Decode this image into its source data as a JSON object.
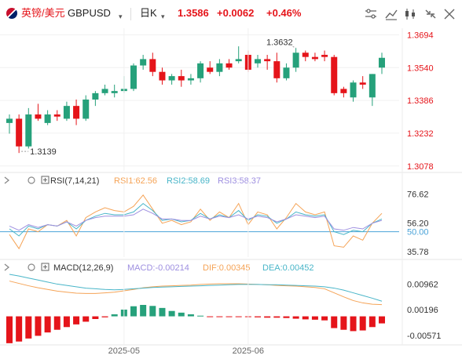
{
  "header": {
    "pair_cn": "英镑/美元",
    "symbol": "GBPUSD",
    "interval": "日K",
    "price": "1.3586",
    "change": "+0.0062",
    "change_pct": "+0.46%"
  },
  "colors": {
    "up": "#26a17b",
    "down": "#e5141a",
    "accent": "#e5141a",
    "rsi1": "#f5a356",
    "rsi2": "#48b5c8",
    "rsi3": "#9e8fe0",
    "ref_line": "#4aa3d8"
  },
  "toolbar_icons": [
    "settings-icon",
    "chart-type-icon",
    "indicator-icon",
    "collapse-icon",
    "close-icon"
  ],
  "chart_data": [
    {
      "type": "candlestick",
      "title": "GBPUSD 日K",
      "y_ticks": [
        "1.3694",
        "1.3540",
        "1.3386",
        "1.3232",
        "1.3078"
      ],
      "ylim": [
        1.3055,
        1.3725
      ],
      "x_ticks": [
        {
          "label": "2025-05",
          "index": 12
        },
        {
          "label": "2025-06",
          "index": 25
        }
      ],
      "annotations": [
        {
          "label": "1.3632",
          "index": 30,
          "value": 1.3632
        },
        {
          "label": "1.3139",
          "index": 1,
          "value": 1.3139
        }
      ],
      "candles": [
        {
          "o": 1.328,
          "h": 1.332,
          "l": 1.323,
          "c": 1.33
        },
        {
          "o": 1.33,
          "h": 1.332,
          "l": 1.3139,
          "c": 1.317
        },
        {
          "o": 1.317,
          "h": 1.335,
          "l": 1.316,
          "c": 1.332
        },
        {
          "o": 1.332,
          "h": 1.337,
          "l": 1.329,
          "c": 1.33
        },
        {
          "o": 1.328,
          "h": 1.334,
          "l": 1.327,
          "c": 1.332
        },
        {
          "o": 1.332,
          "h": 1.334,
          "l": 1.329,
          "c": 1.331
        },
        {
          "o": 1.33,
          "h": 1.338,
          "l": 1.329,
          "c": 1.336
        },
        {
          "o": 1.336,
          "h": 1.339,
          "l": 1.327,
          "c": 1.33
        },
        {
          "o": 1.33,
          "h": 1.341,
          "l": 1.329,
          "c": 1.339
        },
        {
          "o": 1.339,
          "h": 1.343,
          "l": 1.336,
          "c": 1.342
        },
        {
          "o": 1.342,
          "h": 1.346,
          "l": 1.341,
          "c": 1.344
        },
        {
          "o": 1.342,
          "h": 1.346,
          "l": 1.34,
          "c": 1.343
        },
        {
          "o": 1.343,
          "h": 1.35,
          "l": 1.342,
          "c": 1.344
        },
        {
          "o": 1.344,
          "h": 1.356,
          "l": 1.343,
          "c": 1.355
        },
        {
          "o": 1.355,
          "h": 1.36,
          "l": 1.353,
          "c": 1.358
        },
        {
          "o": 1.358,
          "h": 1.361,
          "l": 1.35,
          "c": 1.352
        },
        {
          "o": 1.352,
          "h": 1.354,
          "l": 1.346,
          "c": 1.348
        },
        {
          "o": 1.348,
          "h": 1.351,
          "l": 1.346,
          "c": 1.35
        },
        {
          "o": 1.35,
          "h": 1.353,
          "l": 1.345,
          "c": 1.348
        },
        {
          "o": 1.348,
          "h": 1.351,
          "l": 1.346,
          "c": 1.349
        },
        {
          "o": 1.349,
          "h": 1.357,
          "l": 1.347,
          "c": 1.356
        },
        {
          "o": 1.354,
          "h": 1.357,
          "l": 1.351,
          "c": 1.352
        },
        {
          "o": 1.352,
          "h": 1.358,
          "l": 1.35,
          "c": 1.356
        },
        {
          "o": 1.356,
          "h": 1.358,
          "l": 1.353,
          "c": 1.354
        },
        {
          "o": 1.357,
          "h": 1.364,
          "l": 1.356,
          "c": 1.358
        },
        {
          "o": 1.36,
          "h": 1.362,
          "l": 1.352,
          "c": 1.353
        },
        {
          "o": 1.356,
          "h": 1.36,
          "l": 1.354,
          "c": 1.358
        },
        {
          "o": 1.358,
          "h": 1.36,
          "l": 1.353,
          "c": 1.357
        },
        {
          "o": 1.357,
          "h": 1.361,
          "l": 1.347,
          "c": 1.349
        },
        {
          "o": 1.349,
          "h": 1.356,
          "l": 1.348,
          "c": 1.354
        },
        {
          "o": 1.354,
          "h": 1.3632,
          "l": 1.352,
          "c": 1.361
        },
        {
          "o": 1.361,
          "h": 1.362,
          "l": 1.357,
          "c": 1.359
        },
        {
          "o": 1.359,
          "h": 1.361,
          "l": 1.357,
          "c": 1.358
        },
        {
          "o": 1.36,
          "h": 1.362,
          "l": 1.357,
          "c": 1.359
        },
        {
          "o": 1.359,
          "h": 1.36,
          "l": 1.341,
          "c": 1.342
        },
        {
          "o": 1.344,
          "h": 1.345,
          "l": 1.34,
          "c": 1.342
        },
        {
          "o": 1.34,
          "h": 1.348,
          "l": 1.338,
          "c": 1.347
        },
        {
          "o": 1.347,
          "h": 1.35,
          "l": 1.344,
          "c": 1.346
        },
        {
          "o": 1.34,
          "h": 1.351,
          "l": 1.336,
          "c": 1.351
        },
        {
          "o": 1.354,
          "h": 1.361,
          "l": 1.351,
          "c": 1.3586
        }
      ]
    },
    {
      "type": "line",
      "title": "RSI(7,14,21)",
      "legend": [
        {
          "name": "RSI1",
          "value": "62.56"
        },
        {
          "name": "RSI2",
          "value": "58.69"
        },
        {
          "name": "RSI3",
          "value": "58.37"
        }
      ],
      "y_ticks": [
        "76.62",
        "56.20",
        "50.00",
        "35.78"
      ],
      "ylim": [
        32,
        82
      ],
      "ref_line": 50,
      "series": [
        {
          "name": "RSI1",
          "values": [
            48,
            38,
            52,
            50,
            55,
            54,
            58,
            47,
            60,
            64,
            67,
            65,
            64,
            68,
            76,
            66,
            56,
            58,
            55,
            57,
            66,
            58,
            64,
            60,
            70,
            55,
            64,
            62,
            52,
            60,
            70,
            64,
            62,
            64,
            40,
            39,
            47,
            44,
            56,
            63
          ]
        },
        {
          "name": "RSI2",
          "values": [
            52,
            47,
            54,
            52,
            55,
            54,
            57,
            52,
            58,
            61,
            63,
            62,
            62,
            64,
            70,
            65,
            58,
            59,
            57,
            58,
            63,
            59,
            62,
            60,
            65,
            58,
            62,
            61,
            56,
            59,
            64,
            62,
            61,
            62,
            50,
            48,
            51,
            50,
            56,
            59
          ]
        },
        {
          "name": "RSI3",
          "values": [
            54,
            51,
            55,
            53,
            55,
            54,
            57,
            54,
            58,
            60,
            61,
            61,
            61,
            62,
            66,
            63,
            59,
            59,
            58,
            58,
            61,
            59,
            61,
            60,
            62,
            59,
            61,
            60,
            57,
            59,
            62,
            61,
            60,
            61,
            52,
            51,
            53,
            52,
            56,
            58
          ]
        }
      ]
    },
    {
      "type": "bar",
      "title": "MACD(12,26,9)",
      "legend": [
        {
          "name": "MACD",
          "value": "-0.00214"
        },
        {
          "name": "DIF",
          "value": "0.00345"
        },
        {
          "name": "DEA",
          "value": "0.00452"
        }
      ],
      "y_ticks": [
        "0.00962",
        "0.00196",
        "-0.00571"
      ],
      "ylim": [
        -0.0085,
        0.0125
      ],
      "series": [
        {
          "name": "MACD",
          "values": [
            -0.008,
            -0.0075,
            -0.0066,
            -0.0058,
            -0.0048,
            -0.004,
            -0.0032,
            -0.0024,
            -0.0016,
            -0.0008,
            -0.0003,
            0.0006,
            0.002,
            0.003,
            0.0034,
            0.0031,
            0.0025,
            0.0016,
            0.0011,
            0.0006,
            0.0002,
            -0.0001,
            -0.0002,
            -0.0002,
            -0.0002,
            -0.0002,
            -0.0003,
            -0.0004,
            -0.0004,
            -0.0005,
            -0.0007,
            -0.0009,
            -0.001,
            -0.0012,
            -0.0035,
            -0.004,
            -0.0044,
            -0.0042,
            -0.0032,
            -0.0021
          ]
        },
        {
          "name": "DIF",
          "values": [
            0.0105,
            0.0098,
            0.0091,
            0.0085,
            0.008,
            0.0075,
            0.0072,
            0.0069,
            0.0068,
            0.0068,
            0.007,
            0.0072,
            0.0076,
            0.008,
            0.0085,
            0.0088,
            0.009,
            0.0091,
            0.0092,
            0.0093,
            0.0095,
            0.0096,
            0.0097,
            0.0097,
            0.0097,
            0.0096,
            0.0095,
            0.0094,
            0.0092,
            0.0091,
            0.009,
            0.0088,
            0.0086,
            0.0082,
            0.007,
            0.0058,
            0.0047,
            0.004,
            0.0036,
            0.0035
          ]
        },
        {
          "name": "DEA",
          "values": [
            0.0125,
            0.012,
            0.0114,
            0.0108,
            0.0102,
            0.0096,
            0.0092,
            0.0088,
            0.0084,
            0.0082,
            0.008,
            0.0079,
            0.008,
            0.0082,
            0.0084,
            0.0086,
            0.0087,
            0.0088,
            0.0089,
            0.009,
            0.0091,
            0.0092,
            0.0093,
            0.0094,
            0.0095,
            0.0095,
            0.0095,
            0.0094,
            0.0094,
            0.0093,
            0.0092,
            0.0091,
            0.009,
            0.0088,
            0.0084,
            0.0078,
            0.007,
            0.0062,
            0.0054,
            0.0045
          ]
        }
      ]
    }
  ]
}
